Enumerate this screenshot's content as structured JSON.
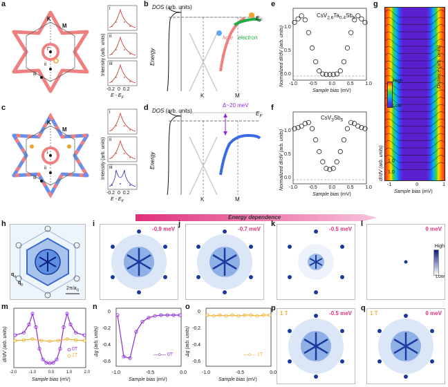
{
  "panels": {
    "a": "a",
    "b": "b",
    "c": "c",
    "d": "d",
    "e": "e",
    "f": "f",
    "g": "g",
    "h": "h",
    "i": "i",
    "j": "j",
    "k": "k",
    "l": "l",
    "m": "m",
    "n": "n",
    "o": "o",
    "p": "p",
    "q": "q"
  },
  "fs_labels": {
    "K": "K",
    "M": "M",
    "i": "i",
    "ii": "ii",
    "iii": "iii",
    "Gamma": "Γ"
  },
  "edc": {
    "ylabel": "Intensity (arb. units)",
    "xlabel": "E - E",
    "xlabel_sub": "F",
    "ticks": [
      "-0.2",
      "0",
      "0.2"
    ],
    "rows": [
      "i",
      "ii",
      "iii"
    ]
  },
  "band_b": {
    "dos_label": "DOS",
    "dos_units": "(arb. units)",
    "energy_label": "Energy",
    "ef": "E",
    "ef_sub": "F",
    "hole": "hole",
    "electron": "electron",
    "k_labels": [
      "K",
      "M"
    ]
  },
  "band_d": {
    "dos_label": "DOS",
    "dos_units": "(arb. units)",
    "energy_label": "Energy",
    "ef": "E",
    "ef_sub": "F",
    "gap": "Δ~20 meV",
    "k_labels": [
      "K",
      "M"
    ]
  },
  "panel_e": {
    "title": "CsV",
    "title_sub1": "2.6",
    "title_mid": "Ta",
    "title_sub2": "0.4",
    "title_end": "Sb",
    "title_sub3": "5",
    "ylabel": "Normalized dI/dV (arb. units)",
    "xlabel": "Sample bias",
    "xunit": "(mV)",
    "xticks": [
      "-1.0",
      "-0.5",
      "0.0",
      "0.5",
      "1.0"
    ],
    "yticks": [
      "0.0",
      "0.5",
      "1.0"
    ]
  },
  "panel_f": {
    "title": "CsV",
    "title_sub1": "3",
    "title_end": "Sb",
    "title_sub2": "5",
    "ylabel": "Normalized dI/dV (arb. units)",
    "xlabel": "Sample bias",
    "xunit": "(mV)",
    "xticks": [
      "-1.0",
      "-0.5",
      "0.0",
      "0.5",
      "1.0"
    ],
    "yticks": [
      "0.0",
      "0.5",
      "1.0"
    ]
  },
  "panel_g": {
    "ylabel": "dI/dV (arb. units)",
    "distance": "Distance",
    "distance_units": "(arb. units)",
    "scale_high": "High",
    "scale_low": "Low",
    "scale_label": "dI/dV (arb. units)",
    "xlabel": "Sample bias",
    "xunit": "(mV)",
    "xticks": [
      "-1",
      "0",
      "1"
    ],
    "yticks": [
      "1.0",
      "1.0"
    ]
  },
  "energy_bar": {
    "label": "Energy dependence"
  },
  "panel_h": {
    "qa": "q",
    "qa_sub": "a",
    "qb": "q",
    "qb_sub": "b",
    "scale": "2π/a",
    "scale_sub": "0"
  },
  "maps": [
    {
      "id": "i",
      "bias": "-0.9 meV",
      "field": ""
    },
    {
      "id": "j",
      "bias": "-0.7 meV",
      "field": ""
    },
    {
      "id": "k",
      "bias": "-0.5 meV",
      "field": ""
    },
    {
      "id": "l",
      "bias": "0 meV",
      "field": ""
    },
    {
      "id": "p",
      "bias": "-0.5 meV",
      "field": "1 T"
    },
    {
      "id": "q",
      "bias": "0 meV",
      "field": "1 T"
    }
  ],
  "colorbar": {
    "high": "High",
    "low": "Low"
  },
  "panel_m": {
    "ylabel": "dI/dV (arb. units)",
    "xlabel": "Sample bias",
    "xunit": "(mV)",
    "xticks": [
      "-2.0",
      "-1.5",
      "-1.0",
      "-0.5",
      "0.0",
      "0.5",
      "1.0",
      "1.5",
      "2.0"
    ],
    "legend": [
      "0T",
      "1T"
    ]
  },
  "panel_n": {
    "ylabel": "Δg (arb. units)",
    "xlabel": "Sample bias",
    "xunit": "(mV)",
    "xticks": [
      "-1.0",
      "-0.5",
      "0.0"
    ],
    "yticks": [
      "0",
      "-0.2",
      "-0.4",
      "-0.6"
    ],
    "legend": "0T"
  },
  "panel_o": {
    "ylabel": "Δg (arb. units)",
    "xlabel": "Sample bias",
    "xunit": "(mV)",
    "xticks": [
      "-1.0",
      "-0.5",
      "0.0"
    ],
    "yticks": [
      "0",
      "-0.2",
      "-0.4",
      "-0.6"
    ],
    "legend": "1T"
  },
  "colors": {
    "pink": "#f08080",
    "blue": "#6a8fe8",
    "green": "#22aa44",
    "orange": "#f0a030",
    "purple": "#8e2bd6",
    "yellow": "#f0b030",
    "magenta": "#e0307a"
  },
  "chart_data": [
    {
      "type": "scatter",
      "panel": "e",
      "xlabel": "Sample bias (mV)",
      "ylabel": "Normalized dI/dV (arb. units)",
      "xlim": [
        -1.0,
        1.0
      ],
      "ylim": [
        0.0,
        1.3
      ],
      "x": [
        -1.0,
        -0.9,
        -0.8,
        -0.7,
        -0.6,
        -0.5,
        -0.4,
        -0.3,
        -0.2,
        -0.1,
        0.0,
        0.1,
        0.2,
        0.3,
        0.4,
        0.5,
        0.6,
        0.7,
        0.8,
        0.9,
        1.0
      ],
      "y": [
        1.05,
        1.12,
        1.18,
        1.1,
        0.85,
        0.55,
        0.28,
        0.1,
        0.04,
        0.03,
        0.03,
        0.03,
        0.04,
        0.1,
        0.28,
        0.55,
        0.85,
        1.1,
        1.18,
        1.12,
        1.05
      ]
    },
    {
      "type": "scatter",
      "panel": "f",
      "xlabel": "Sample bias (mV)",
      "ylabel": "Normalized dI/dV (arb. units)",
      "xlim": [
        -1.0,
        1.0
      ],
      "ylim": [
        0.0,
        1.3
      ],
      "x": [
        -1.0,
        -0.9,
        -0.8,
        -0.7,
        -0.6,
        -0.5,
        -0.4,
        -0.3,
        -0.2,
        -0.1,
        0.0,
        0.1,
        0.2,
        0.3,
        0.4,
        0.5,
        0.6,
        0.7,
        0.8,
        0.9,
        1.0
      ],
      "y": [
        1.0,
        1.02,
        1.05,
        1.1,
        1.12,
        1.0,
        0.78,
        0.55,
        0.35,
        0.22,
        0.2,
        0.22,
        0.35,
        0.55,
        0.78,
        1.0,
        1.12,
        1.1,
        1.05,
        1.02,
        1.0
      ]
    },
    {
      "type": "line",
      "panel": "m",
      "xlabel": "Sample bias (mV)",
      "ylabel": "dI/dV (arb. units)",
      "xlim": [
        -2.0,
        2.0
      ],
      "series": [
        {
          "name": "0T",
          "x": [
            -2.0,
            -1.5,
            -1.2,
            -1.0,
            -0.8,
            -0.6,
            -0.4,
            -0.2,
            0.0,
            0.2,
            0.4,
            0.6,
            0.8,
            1.0,
            1.2,
            1.5,
            2.0
          ],
          "y": [
            0.55,
            0.6,
            0.75,
            0.95,
            0.7,
            0.3,
            0.1,
            0.04,
            0.03,
            0.04,
            0.1,
            0.3,
            0.7,
            0.95,
            0.75,
            0.6,
            0.55
          ]
        },
        {
          "name": "1T",
          "x": [
            -2.0,
            -1.5,
            -1.0,
            -0.5,
            0.0,
            0.5,
            1.0,
            1.5,
            2.0
          ],
          "y": [
            0.45,
            0.46,
            0.48,
            0.45,
            0.44,
            0.45,
            0.48,
            0.46,
            0.45
          ]
        }
      ]
    },
    {
      "type": "line",
      "panel": "n",
      "xlabel": "Sample bias (mV)",
      "ylabel": "Δg (arb. units)",
      "xlim": [
        -1.0,
        0.0
      ],
      "ylim": [
        -0.6,
        0.05
      ],
      "series": [
        {
          "name": "0T",
          "x": [
            -1.0,
            -0.9,
            -0.8,
            -0.7,
            -0.6,
            -0.5,
            -0.4,
            -0.3,
            -0.2,
            -0.1,
            0.0
          ],
          "y": [
            0.0,
            -0.5,
            -0.52,
            -0.2,
            -0.08,
            -0.03,
            -0.01,
            0.0,
            0.0,
            0.0,
            0.0
          ]
        }
      ]
    },
    {
      "type": "line",
      "panel": "o",
      "xlabel": "Sample bias (mV)",
      "ylabel": "Δg (arb. units)",
      "xlim": [
        -1.0,
        0.0
      ],
      "ylim": [
        -0.6,
        0.05
      ],
      "series": [
        {
          "name": "1T",
          "x": [
            -1.0,
            -0.9,
            -0.8,
            -0.7,
            -0.6,
            -0.5,
            -0.4,
            -0.3,
            -0.2,
            -0.1,
            0.0
          ],
          "y": [
            0.0,
            -0.01,
            0.0,
            -0.01,
            0.0,
            -0.01,
            0.0,
            0.0,
            -0.01,
            0.0,
            0.0
          ]
        }
      ]
    }
  ]
}
